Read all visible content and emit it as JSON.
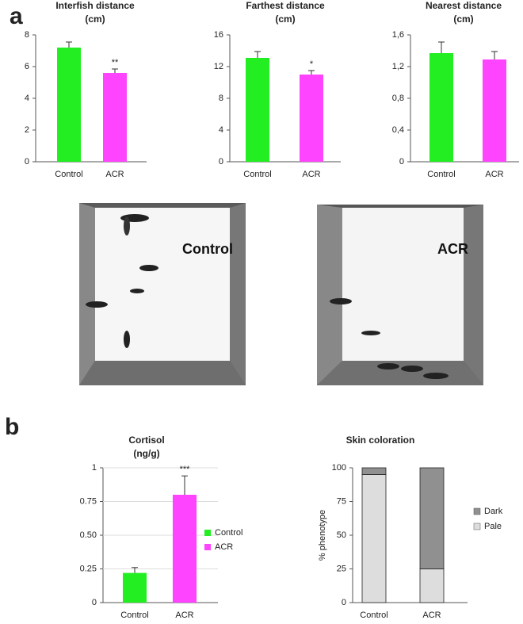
{
  "panels": [
    "a",
    "b"
  ],
  "photos": [
    {
      "label": "Control"
    },
    {
      "label": "ACR"
    }
  ],
  "chart_data": [
    {
      "type": "bar",
      "title": [
        "Interfish distance",
        "(cm)"
      ],
      "categories": [
        "Control",
        "ACR"
      ],
      "values": [
        7.2,
        5.6
      ],
      "errors": [
        0.35,
        0.25
      ],
      "significance": [
        null,
        "**"
      ],
      "colors": [
        "#22ee22",
        "#ff44ff"
      ],
      "ylim": [
        0,
        8
      ],
      "yticks": [
        0,
        2,
        4,
        6,
        8
      ]
    },
    {
      "type": "bar",
      "title": [
        "Farthest distance",
        "(cm)"
      ],
      "categories": [
        "Control",
        "ACR"
      ],
      "values": [
        13.1,
        11.0
      ],
      "errors": [
        0.8,
        0.5
      ],
      "significance": [
        null,
        "*"
      ],
      "colors": [
        "#22ee22",
        "#ff44ff"
      ],
      "ylim": [
        0,
        16
      ],
      "yticks": [
        0,
        4,
        8,
        12,
        16
      ]
    },
    {
      "type": "bar",
      "title": [
        "Nearest distance",
        "(cm)"
      ],
      "categories": [
        "Control",
        "ACR"
      ],
      "values": [
        1.37,
        1.29
      ],
      "errors": [
        0.14,
        0.1
      ],
      "significance": [
        null,
        null
      ],
      "colors": [
        "#22ee22",
        "#ff44ff"
      ],
      "ylim": [
        0,
        1.6
      ],
      "yticks": [
        0,
        {
          "value": 0.4,
          "label": "0,4"
        },
        {
          "value": 0.8,
          "label": "0,8"
        },
        {
          "value": 1.2,
          "label": "1,2"
        },
        {
          "value": 1.6,
          "label": "1,6"
        }
      ]
    },
    {
      "type": "bar",
      "title": [
        "Cortisol",
        "(ng/g)"
      ],
      "categories": [
        "Control",
        "ACR"
      ],
      "values": [
        0.22,
        0.8
      ],
      "errors": [
        0.04,
        0.14
      ],
      "significance": [
        null,
        "***"
      ],
      "colors": [
        "#22ee22",
        "#ff44ff"
      ],
      "ylim": [
        0,
        1
      ],
      "grid": true,
      "legend": true,
      "yticks": [
        0,
        0.25,
        {
          "value": 0.5,
          "label": "0.50"
        },
        0.75,
        1
      ]
    },
    {
      "type": "stacked_bar",
      "title": [
        "Skin coloration"
      ],
      "categories": [
        "Control",
        "ACR"
      ],
      "y_label": "% phenotype",
      "series": [
        {
          "name": "Pale",
          "color": "#dddddd",
          "values": [
            95,
            25
          ]
        },
        {
          "name": "Dark",
          "color": "#909090",
          "values": [
            5,
            75
          ]
        }
      ],
      "ylim": [
        0,
        100
      ],
      "yticks": [
        0,
        25,
        50,
        75,
        100
      ]
    }
  ]
}
